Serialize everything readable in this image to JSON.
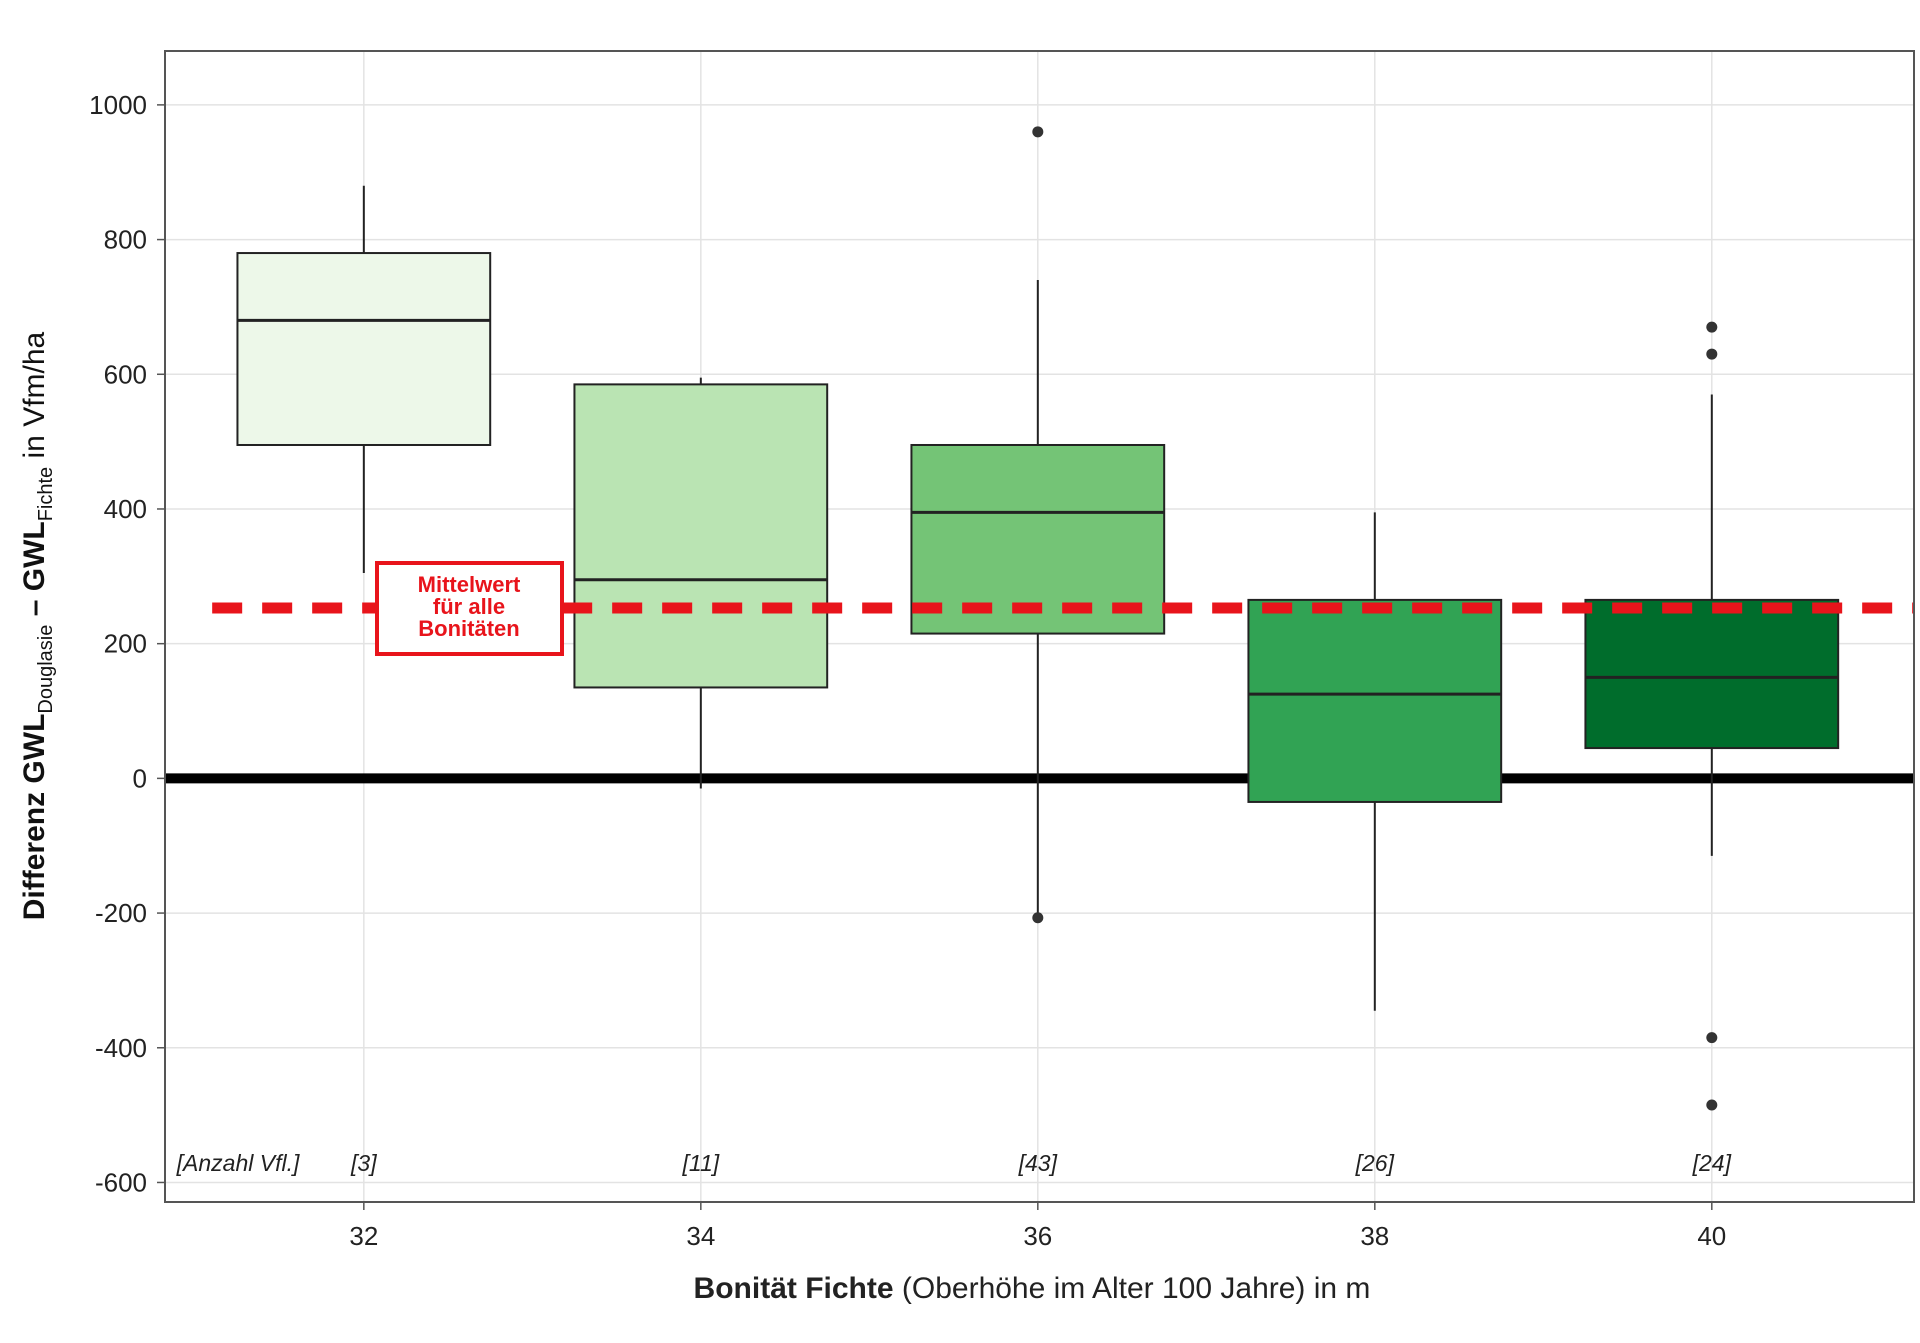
{
  "chart_data": {
    "type": "boxplot",
    "x_label": {
      "bold": "Bonität Fichte",
      "rest": " (Oberhöhe im Alter 100 Jahre) in m"
    },
    "y_label": {
      "part1": "Differenz GWL",
      "sub1": "Douglasie",
      "part2": " – GWL",
      "sub2": "Fichte",
      "part3": " in Vfm/ha"
    },
    "xlim": [
      30.82,
      41.2
    ],
    "xticks": [
      32,
      34,
      36,
      38,
      40
    ],
    "ylim": [
      -629,
      1080
    ],
    "yticks": [
      -600,
      -400,
      -200,
      0,
      200,
      400,
      600,
      800,
      1000
    ],
    "grid": true,
    "box_width": 1.5,
    "reference_line": {
      "value": 0,
      "color": "#000000"
    },
    "mean_line": {
      "value": 253,
      "color": "#e8141b"
    },
    "annotation": {
      "lines": [
        "Mittelwert",
        "für alle",
        "Bonitäten"
      ],
      "color": "#e8141b"
    },
    "count_title": "[Anzahl Vfl.]",
    "boxes": [
      {
        "x": 32,
        "whisker_low": 305,
        "q1": 495,
        "median": 680,
        "q3": 780,
        "whisker_high": 880,
        "outliers": [],
        "color": "#edf8e9",
        "count_label": "[3]"
      },
      {
        "x": 34,
        "whisker_low": -15,
        "q1": 135,
        "median": 295,
        "q3": 585,
        "whisker_high": 595,
        "outliers": [],
        "color": "#bae4b3",
        "count_label": "[11]"
      },
      {
        "x": 36,
        "whisker_low": -200,
        "q1": 215,
        "median": 395,
        "q3": 495,
        "whisker_high": 740,
        "outliers": [
          960,
          -207
        ],
        "color": "#74c476",
        "count_label": "[43]"
      },
      {
        "x": 38,
        "whisker_low": -345,
        "q1": -35,
        "median": 125,
        "q3": 265,
        "whisker_high": 395,
        "outliers": [],
        "color": "#31a354",
        "count_label": "[26]"
      },
      {
        "x": 40,
        "whisker_low": -115,
        "q1": 45,
        "median": 150,
        "q3": 265,
        "whisker_high": 570,
        "outliers": [
          670,
          630,
          -385,
          -485
        ],
        "color": "#006d2c",
        "count_label": "[24]"
      }
    ]
  }
}
